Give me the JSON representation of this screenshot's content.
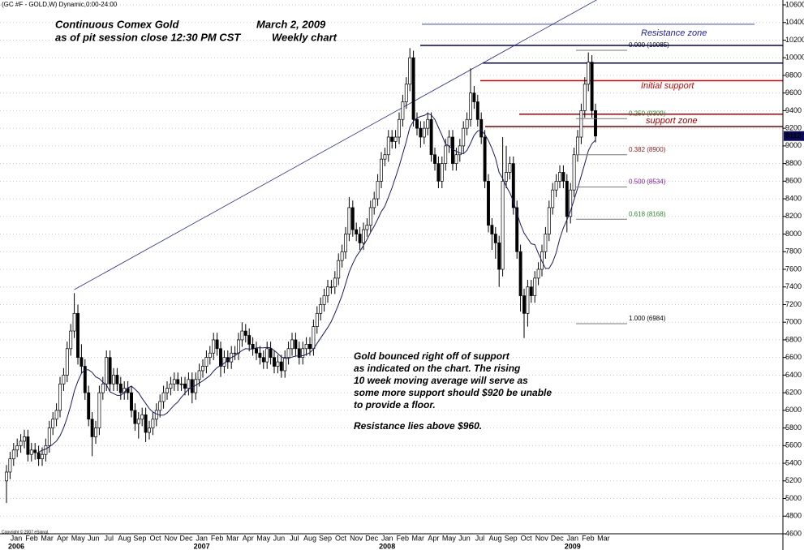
{
  "chart_data": {
    "type": "candlestick",
    "header": "(GC #F - GOLD,W) Dynamic,0:00-24:00",
    "title": [
      "Continuous Comex Gold",
      "as of pit session close 12:30 PM CST"
    ],
    "date": "March 2, 2009",
    "subtitle": "Weekly chart",
    "note_lines": [
      "Gold bounced right off of support",
      "as indicated on the chart. The rising",
      "10 week moving average will serve as",
      "some more support should $920 be unable",
      "to provide a floor."
    ],
    "note_end": "Resistance lies above $960.",
    "annotations": [
      "Resistance zone",
      "Initial support",
      "support zone"
    ],
    "copyright": "Copyright © 2007 eSignal.",
    "ylim": [
      4600,
      10600
    ],
    "yticks": [
      4600,
      4800,
      5000,
      5200,
      5400,
      5600,
      5800,
      6000,
      6200,
      6400,
      6600,
      6800,
      7000,
      7200,
      7400,
      7600,
      7800,
      8000,
      8200,
      8400,
      8600,
      8800,
      9000,
      9200,
      9400,
      9600,
      9800,
      10000,
      10200,
      10400,
      10600
    ],
    "grid": true,
    "months": [
      "Jan",
      "Feb",
      "Mar",
      "Apr",
      "May",
      "Jun",
      "Jul",
      "Aug",
      "Sep",
      "Oct",
      "Nov",
      "Dec",
      "Jan",
      "Feb",
      "Mar",
      "Apr",
      "May",
      "Jun",
      "Jul",
      "Aug",
      "Sep",
      "Oct",
      "Nov",
      "Dec",
      "Jan",
      "Feb",
      "Mar",
      "Apr",
      "May",
      "Jun",
      "Jul",
      "Aug",
      "Sep",
      "Oct",
      "Nov",
      "Dec",
      "Jan",
      "Feb",
      "Mar"
    ],
    "years": [
      "2006",
      "2007",
      "2008",
      "2009"
    ],
    "up_color": "#ffffff",
    "down_color": "#000000",
    "ma_color": "#1a1a66",
    "open": [
      5200,
      5300,
      5450,
      5550,
      5600,
      5650,
      5700,
      5500,
      5550,
      5520,
      5450,
      5500,
      5600,
      5800,
      5900,
      6000,
      6300,
      6400,
      6700,
      6900,
      7100,
      6600,
      6500,
      6200,
      5900,
      5700,
      5800,
      6200,
      6300,
      6600,
      6300,
      6400,
      6300,
      6200,
      6250,
      6200,
      6000,
      5850,
      5900,
      5950,
      5750,
      5800,
      5900,
      6000,
      6100,
      6200,
      6250,
      6300,
      6350,
      6300,
      6300,
      6250,
      6350,
      6200,
      6350,
      6450,
      6500,
      6600,
      6650,
      6800,
      6700,
      6500,
      6600,
      6550,
      6650,
      6650,
      6800,
      6900,
      6850,
      6750,
      6700,
      6650,
      6600,
      6550,
      6700,
      6600,
      6500,
      6550,
      6450,
      6600,
      6700,
      6800,
      6700,
      6600,
      6700,
      6750,
      6700,
      6950,
      7100,
      7200,
      7300,
      7400,
      7400,
      7500,
      7700,
      7800,
      8000,
      8300,
      8050,
      8000,
      7900,
      8050,
      8100,
      8300,
      8400,
      8600,
      8850,
      8900,
      9100,
      9050,
      9100,
      9300,
      9500,
      9700,
      10000,
      9300,
      9200,
      9100,
      9200,
      9300,
      8900,
      8800,
      8600,
      8800,
      9000,
      9100,
      8800,
      8900,
      9000,
      9200,
      9300,
      9600,
      9500,
      9300,
      9100,
      8600,
      8100,
      8000,
      7900,
      7600,
      8600,
      8700,
      8800,
      8300,
      7800,
      7300,
      7100,
      7400,
      7300,
      7500,
      7600,
      7800,
      8000,
      8300,
      8500,
      8600,
      8700,
      8600,
      8200,
      8500,
      8900,
      9100,
      9400,
      9700,
      9950,
      9400
    ],
    "high": [
      5380,
      5530,
      5630,
      5680,
      5730,
      5780,
      5780,
      5630,
      5630,
      5600,
      5580,
      5680,
      5880,
      5980,
      6080,
      6380,
      6480,
      6780,
      6980,
      7330,
      7200,
      6750,
      6580,
      6280,
      5980,
      5880,
      6280,
      6380,
      6680,
      6680,
      6480,
      6480,
      6380,
      6330,
      6330,
      6280,
      6080,
      5980,
      6030,
      6030,
      5880,
      5980,
      6080,
      6180,
      6280,
      6330,
      6380,
      6430,
      6430,
      6380,
      6380,
      6430,
      6430,
      6430,
      6530,
      6580,
      6680,
      6730,
      6880,
      6880,
      6780,
      6680,
      6680,
      6730,
      6730,
      6880,
      7000,
      6980,
      6930,
      6830,
      6780,
      6730,
      6680,
      6780,
      6780,
      6680,
      6630,
      6630,
      6680,
      6780,
      6880,
      6880,
      6780,
      6780,
      6830,
      6830,
      7030,
      7180,
      7280,
      7380,
      7480,
      7480,
      7580,
      7780,
      7880,
      8080,
      8420,
      8380,
      8130,
      8080,
      8130,
      8180,
      8380,
      8480,
      8680,
      8930,
      8980,
      9180,
      9180,
      9180,
      9380,
      9580,
      9780,
      10110,
      10080,
      9380,
      9280,
      9280,
      9380,
      9380,
      8980,
      8880,
      8880,
      9080,
      9180,
      9180,
      8980,
      9080,
      9280,
      9380,
      9880,
      9680,
      9580,
      9380,
      9180,
      8680,
      8180,
      8080,
      7980,
      9100,
      9000,
      8880,
      8880,
      8380,
      7880,
      7380,
      7480,
      7480,
      7580,
      7680,
      7880,
      8080,
      8380,
      8580,
      8680,
      8780,
      8780,
      8680,
      8580,
      8980,
      9180,
      9480,
      9780,
      10060,
      10030,
      9480
    ],
    "low": [
      4950,
      5220,
      5370,
      5470,
      5520,
      5570,
      5420,
      5420,
      5440,
      5370,
      5370,
      5420,
      5520,
      5720,
      5820,
      5920,
      6220,
      6320,
      6620,
      6820,
      6520,
      6420,
      6120,
      5820,
      5480,
      5620,
      5720,
      6120,
      6220,
      6220,
      6220,
      6220,
      6120,
      6120,
      6120,
      5920,
      5770,
      5680,
      5820,
      5640,
      5670,
      5720,
      5820,
      5920,
      6020,
      6120,
      6170,
      6220,
      6220,
      6220,
      6170,
      6170,
      6080,
      6120,
      6270,
      6370,
      6420,
      6520,
      6570,
      6620,
      6380,
      6420,
      6470,
      6470,
      6570,
      6570,
      6720,
      6770,
      6670,
      6620,
      6570,
      6520,
      6470,
      6470,
      6520,
      6420,
      6420,
      6370,
      6370,
      6520,
      6620,
      6620,
      6520,
      6520,
      6620,
      6620,
      6620,
      6870,
      7020,
      7120,
      7220,
      7320,
      7320,
      7420,
      7620,
      7720,
      7920,
      7970,
      7920,
      7820,
      7820,
      7970,
      8020,
      8220,
      8320,
      8520,
      8770,
      8820,
      8970,
      8970,
      9020,
      9220,
      9420,
      9620,
      9220,
      9120,
      8980,
      9020,
      9120,
      8820,
      8720,
      8520,
      8520,
      8720,
      8920,
      8720,
      8720,
      8820,
      8920,
      9120,
      9220,
      9420,
      9220,
      9020,
      8520,
      8020,
      7820,
      7720,
      7400,
      7520,
      8520,
      8620,
      8220,
      7720,
      7120,
      6820,
      6950,
      7220,
      7220,
      7420,
      7520,
      7720,
      7920,
      8220,
      8420,
      8520,
      8520,
      8020,
      8120,
      8420,
      8820,
      9020,
      9320,
      9620,
      9320,
      9040
    ],
    "close": [
      5300,
      5450,
      5550,
      5600,
      5650,
      5700,
      5500,
      5550,
      5520,
      5450,
      5500,
      5600,
      5800,
      5900,
      6000,
      6300,
      6400,
      6700,
      6900,
      7100,
      6600,
      6500,
      6200,
      5900,
      5700,
      5800,
      6200,
      6300,
      6600,
      6300,
      6400,
      6300,
      6200,
      6250,
      6200,
      6000,
      5850,
      5900,
      5950,
      5750,
      5800,
      5900,
      6000,
      6100,
      6200,
      6250,
      6300,
      6350,
      6300,
      6300,
      6250,
      6350,
      6200,
      6350,
      6450,
      6500,
      6600,
      6650,
      6800,
      6700,
      6500,
      6600,
      6550,
      6650,
      6650,
      6800,
      6900,
      6850,
      6750,
      6700,
      6650,
      6600,
      6550,
      6700,
      6600,
      6500,
      6550,
      6450,
      6600,
      6700,
      6800,
      6700,
      6600,
      6700,
      6750,
      6700,
      6950,
      7100,
      7200,
      7300,
      7400,
      7400,
      7500,
      7700,
      7800,
      8000,
      8300,
      8050,
      8000,
      7900,
      8050,
      8100,
      8300,
      8400,
      8600,
      8850,
      8900,
      9100,
      9050,
      9100,
      9300,
      9500,
      9700,
      10000,
      9300,
      9200,
      9100,
      9200,
      9300,
      8900,
      8800,
      8600,
      8800,
      9000,
      9100,
      8800,
      8900,
      9000,
      9200,
      9300,
      9600,
      9500,
      9300,
      9100,
      8600,
      8100,
      8000,
      7900,
      7600,
      8600,
      8700,
      8800,
      8300,
      7800,
      7300,
      7100,
      7400,
      7300,
      7500,
      7600,
      7800,
      8000,
      8300,
      8500,
      8600,
      8700,
      8600,
      8200,
      8500,
      8900,
      9100,
      9400,
      9700,
      9950,
      9400,
      9112
    ],
    "ma": [
      null,
      null,
      null,
      null,
      null,
      null,
      null,
      null,
      null,
      5527,
      5547,
      5562,
      5587,
      5617,
      5652,
      5712,
      5802,
      5917,
      6055,
      6220,
      6330,
      6420,
      6460,
      6460,
      6430,
      6380,
      6360,
      6320,
      6290,
      6210,
      6190,
      6170,
      6170,
      6205,
      6255,
      6275,
      6240,
      6200,
      6135,
      6080,
      6020,
      5980,
      5960,
      5945,
      5945,
      5970,
      6015,
      6060,
      6095,
      6150,
      6195,
      6240,
      6260,
      6285,
      6310,
      6335,
      6365,
      6395,
      6445,
      6485,
      6510,
      6535,
      6570,
      6600,
      6620,
      6650,
      6680,
      6700,
      6695,
      6695,
      6710,
      6710,
      6710,
      6715,
      6710,
      6680,
      6645,
      6605,
      6590,
      6590,
      6605,
      6615,
      6620,
      6620,
      6635,
      6655,
      6695,
      6760,
      6820,
      6880,
      6940,
      7010,
      7100,
      7200,
      7305,
      7435,
      7570,
      7665,
      7745,
      7805,
      7870,
      7940,
      8020,
      8090,
      8170,
      8255,
      8315,
      8420,
      8525,
      8645,
      8770,
      8910,
      9050,
      9210,
      9280,
      9315,
      9335,
      9345,
      9370,
      9350,
      9300,
      9210,
      9120,
      9020,
      9000,
      8960,
      8940,
      8920,
      8910,
      8950,
      9030,
      9120,
      9170,
      9180,
      9130,
      9060,
      8970,
      8860,
      8700,
      8630,
      8540,
      8470,
      8370,
      8240,
      8110,
      8010,
      7950,
      7890,
      7880,
      7780,
      7690,
      7610,
      7610,
      7680,
      7790,
      7950,
      8070,
      8160,
      8260,
      8390,
      8520,
      8660,
      8800,
      8945,
      9025,
      9066
    ],
    "trendline": {
      "values": [
        7370,
        10680
      ],
      "color": "#2a2a9a"
    },
    "levels": [
      {
        "value": 10380,
        "color": "#7a86d8"
      },
      {
        "value": 10140,
        "color": "#00007a"
      },
      {
        "value": 9940,
        "color": "#00007a"
      },
      {
        "value": 9740,
        "color": "#d40000"
      },
      {
        "value": 9360,
        "color": "#a00000"
      },
      {
        "value": 9220,
        "color": "#800000"
      }
    ],
    "fib": [
      {
        "label": "0.000 (10085)",
        "value": 10085,
        "color": "#000000"
      },
      {
        "label": "0.250 (9309)",
        "value": 9309,
        "color": "#2e7d2e"
      },
      {
        "label": "0.382 (8900)",
        "value": 8900,
        "color": "#8b1a1a"
      },
      {
        "label": "0.500 (8534)",
        "value": 8534,
        "color": "#7a1a9a"
      },
      {
        "label": "0.618 (8168)",
        "value": 8168,
        "color": "#2e8b2e"
      },
      {
        "label": "1.000 (6984)",
        "value": 6984,
        "color": "#000000"
      }
    ]
  }
}
